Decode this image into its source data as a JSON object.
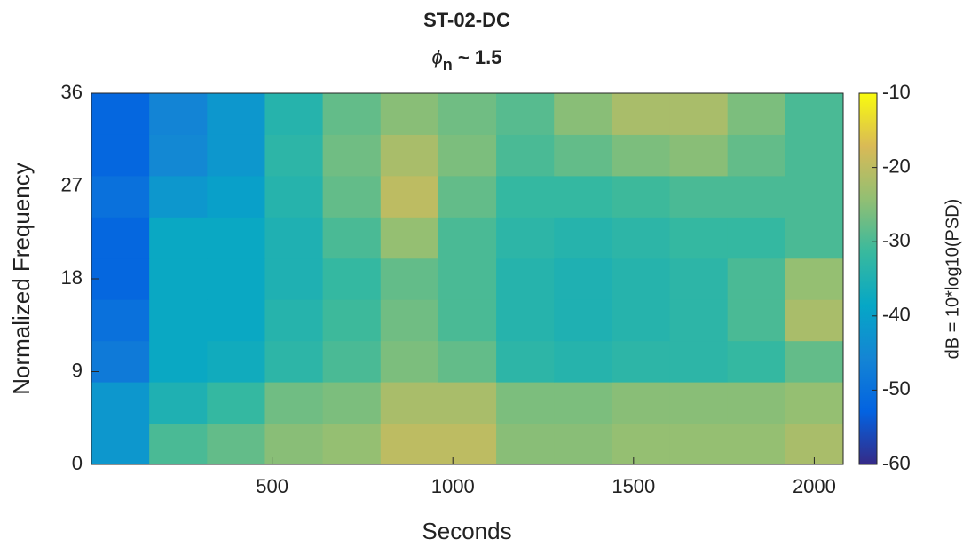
{
  "chart_data": {
    "type": "heatmap",
    "title": "ST-02-DC",
    "subtitle": [
      "ϕ",
      "n",
      " ~ 1.5"
    ],
    "xlabel": "Seconds",
    "ylabel": "Normalized Frequency",
    "colorbar_label": "dB = 10*log10(PSD)",
    "xbins": [
      0,
      160,
      320,
      480,
      640,
      800,
      960,
      1120,
      1280,
      1440,
      1600,
      1760,
      1920,
      2080
    ],
    "ybins": [
      0,
      4,
      8,
      12,
      16,
      20,
      24,
      28,
      32,
      36
    ],
    "values": [
      [
        -42,
        -30,
        -28,
        -25,
        -24,
        -20,
        -20,
        -25,
        -25,
        -24,
        -24,
        -24,
        -22
      ],
      [
        -42,
        -35,
        -32,
        -27,
        -26,
        -22,
        -22,
        -26,
        -26,
        -25,
        -25,
        -25,
        -24
      ],
      [
        -48,
        -38,
        -37,
        -33,
        -30,
        -26,
        -28,
        -33,
        -34,
        -33,
        -33,
        -32,
        -28
      ],
      [
        -50,
        -38,
        -38,
        -34,
        -31,
        -27,
        -30,
        -34,
        -35,
        -34,
        -33,
        -30,
        -22
      ],
      [
        -52,
        -38,
        -38,
        -35,
        -32,
        -28,
        -30,
        -34,
        -35,
        -34,
        -33,
        -30,
        -24
      ],
      [
        -52,
        -38,
        -38,
        -35,
        -30,
        -24,
        -30,
        -33,
        -34,
        -33,
        -32,
        -32,
        -30
      ],
      [
        -50,
        -42,
        -40,
        -34,
        -28,
        -20,
        -28,
        -32,
        -32,
        -31,
        -30,
        -30,
        -30
      ],
      [
        -52,
        -45,
        -42,
        -33,
        -27,
        -22,
        -26,
        -30,
        -28,
        -26,
        -25,
        -28,
        -30
      ],
      [
        -52,
        -46,
        -42,
        -34,
        -28,
        -25,
        -27,
        -29,
        -25,
        -22,
        -22,
        -26,
        -30
      ]
    ],
    "xlim": [
      0,
      2080
    ],
    "xticks": [
      500,
      1000,
      1500,
      2000
    ],
    "ylim": [
      0,
      36
    ],
    "yticks": [
      0,
      9,
      18,
      27,
      36
    ],
    "clim": [
      -60,
      -10
    ],
    "cticks": [
      -60,
      -50,
      -40,
      -30,
      -20,
      -10
    ],
    "colormap": [
      "#352a87",
      "#0363e1",
      "#1485d4",
      "#06a7c6",
      "#38b99e",
      "#92bf73",
      "#d9ba56",
      "#f9fb0e"
    ]
  }
}
